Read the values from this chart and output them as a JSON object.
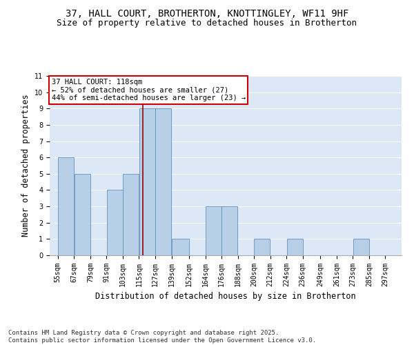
{
  "title1": "37, HALL COURT, BROTHERTON, KNOTTINGLEY, WF11 9HF",
  "title2": "Size of property relative to detached houses in Brotherton",
  "xlabel": "Distribution of detached houses by size in Brotherton",
  "ylabel": "Number of detached properties",
  "footnote1": "Contains HM Land Registry data © Crown copyright and database right 2025.",
  "footnote2": "Contains public sector information licensed under the Open Government Licence v3.0.",
  "annotation_line1": "37 HALL COURT: 118sqm",
  "annotation_line2": "← 52% of detached houses are smaller (27)",
  "annotation_line3": "44% of semi-detached houses are larger (23) →",
  "bar_left_edges": [
    55,
    67,
    79,
    91,
    103,
    115,
    127,
    139,
    152,
    164,
    176,
    188,
    200,
    212,
    224,
    236,
    249,
    261,
    273,
    285
  ],
  "bar_widths": [
    12,
    12,
    12,
    12,
    12,
    12,
    12,
    13,
    12,
    12,
    12,
    12,
    12,
    12,
    12,
    13,
    12,
    12,
    12,
    12
  ],
  "bar_heights": [
    6,
    5,
    0,
    4,
    5,
    9,
    9,
    1,
    0,
    3,
    3,
    0,
    1,
    0,
    1,
    0,
    0,
    0,
    1,
    0
  ],
  "tick_labels": [
    "55sqm",
    "67sqm",
    "79sqm",
    "91sqm",
    "103sqm",
    "115sqm",
    "127sqm",
    "139sqm",
    "152sqm",
    "164sqm",
    "176sqm",
    "188sqm",
    "200sqm",
    "212sqm",
    "224sqm",
    "236sqm",
    "249sqm",
    "261sqm",
    "273sqm",
    "285sqm",
    "297sqm"
  ],
  "tick_positions": [
    55,
    67,
    79,
    91,
    103,
    115,
    127,
    139,
    152,
    164,
    176,
    188,
    200,
    212,
    224,
    236,
    249,
    261,
    273,
    285,
    297
  ],
  "bar_color": "#b8cfe8",
  "bar_edge_color": "#6090bb",
  "vline_x": 118,
  "vline_color": "#990000",
  "annotation_box_edge_color": "#cc0000",
  "ylim": [
    0,
    11
  ],
  "xlim": [
    49,
    309
  ],
  "bg_color": "#dce8f5",
  "grid_color": "#ffffff",
  "title_fontsize": 10,
  "subtitle_fontsize": 9,
  "axis_label_fontsize": 8.5,
  "tick_fontsize": 7,
  "annotation_fontsize": 7.5,
  "footnote_fontsize": 6.5
}
